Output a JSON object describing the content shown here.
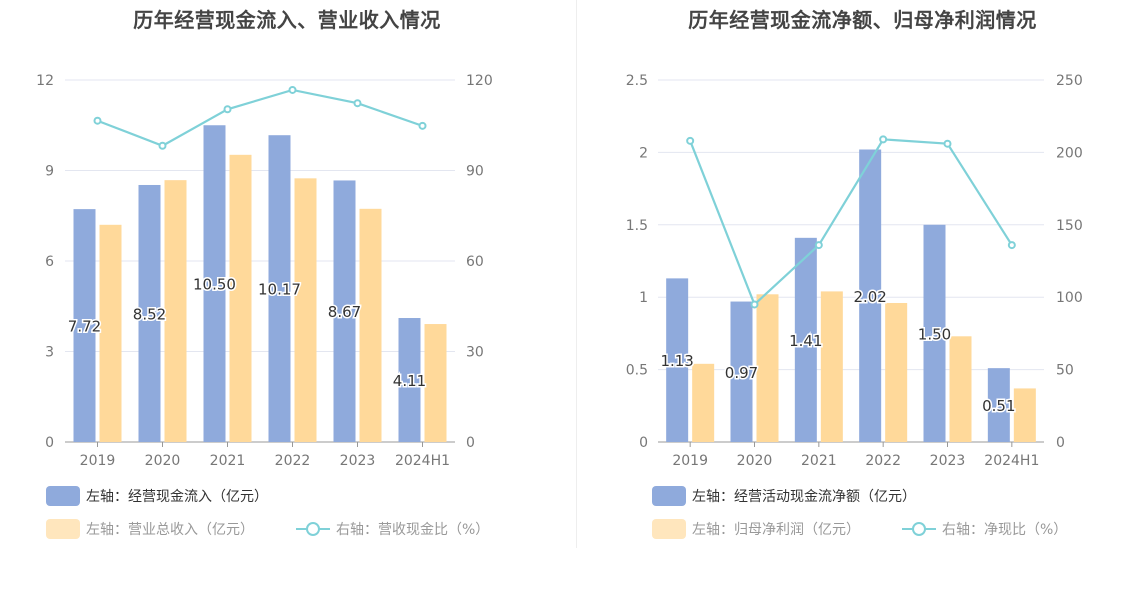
{
  "chart_data": [
    {
      "type": "bar",
      "title": "历年经营现金流入、营业收入情况",
      "categories": [
        "2019",
        "2020",
        "2021",
        "2022",
        "2023",
        "2024H1"
      ],
      "left_axis": {
        "ticks": [
          "0",
          "3",
          "6",
          "9",
          "12"
        ],
        "ylim": [
          0,
          12
        ]
      },
      "right_axis": {
        "ticks": [
          "0",
          "30",
          "60",
          "90",
          "120"
        ],
        "ylim": [
          0,
          120
        ]
      },
      "series": [
        {
          "name": "左轴：经营现金流入（亿元）",
          "type": "bar",
          "axis": "left",
          "color": "#8faadc",
          "values": [
            7.72,
            8.52,
            10.5,
            10.17,
            8.67,
            4.11
          ],
          "labels": [
            "7.72",
            "8.52",
            "10.50",
            "10.17",
            "8.67",
            "4.11"
          ]
        },
        {
          "name": "左轴：营业总收入（亿元）",
          "type": "bar",
          "axis": "left",
          "color": "#ffd99a",
          "values": [
            7.2,
            8.68,
            9.52,
            8.74,
            7.73,
            3.91
          ]
        },
        {
          "name": "右轴：营收现金比（%）",
          "type": "line",
          "axis": "right",
          "color": "#7fd1d8",
          "values": [
            106.5,
            98.2,
            110.3,
            116.7,
            112.3,
            104.8
          ]
        }
      ],
      "grid": true,
      "legend": "bottom"
    },
    {
      "type": "bar",
      "title": "历年经营现金流净额、归母净利润情况",
      "categories": [
        "2019",
        "2020",
        "2021",
        "2022",
        "2023",
        "2024H1"
      ],
      "left_axis": {
        "ticks": [
          "0",
          "0.5",
          "1",
          "1.5",
          "2",
          "2.5"
        ],
        "ylim": [
          0,
          2.5
        ]
      },
      "right_axis": {
        "ticks": [
          "0",
          "50",
          "100",
          "150",
          "200",
          "250"
        ],
        "ylim": [
          0,
          250
        ]
      },
      "series": [
        {
          "name": "左轴：经营活动现金流净额（亿元）",
          "type": "bar",
          "axis": "left",
          "color": "#8faadc",
          "values": [
            1.13,
            0.97,
            1.41,
            2.02,
            1.5,
            0.51
          ],
          "labels": [
            "1.13",
            "0.97",
            "1.41",
            "2.02",
            "1.50",
            "0.51"
          ]
        },
        {
          "name": "左轴：归母净利润（亿元）",
          "type": "bar",
          "axis": "left",
          "color": "#ffd99a",
          "values": [
            0.54,
            1.02,
            1.04,
            0.96,
            0.73,
            0.37
          ]
        },
        {
          "name": "右轴：净现比（%）",
          "type": "line",
          "axis": "right",
          "color": "#7fd1d8",
          "values": [
            208,
            95,
            136,
            209,
            206,
            136
          ]
        }
      ],
      "grid": true,
      "legend": "bottom"
    }
  ]
}
